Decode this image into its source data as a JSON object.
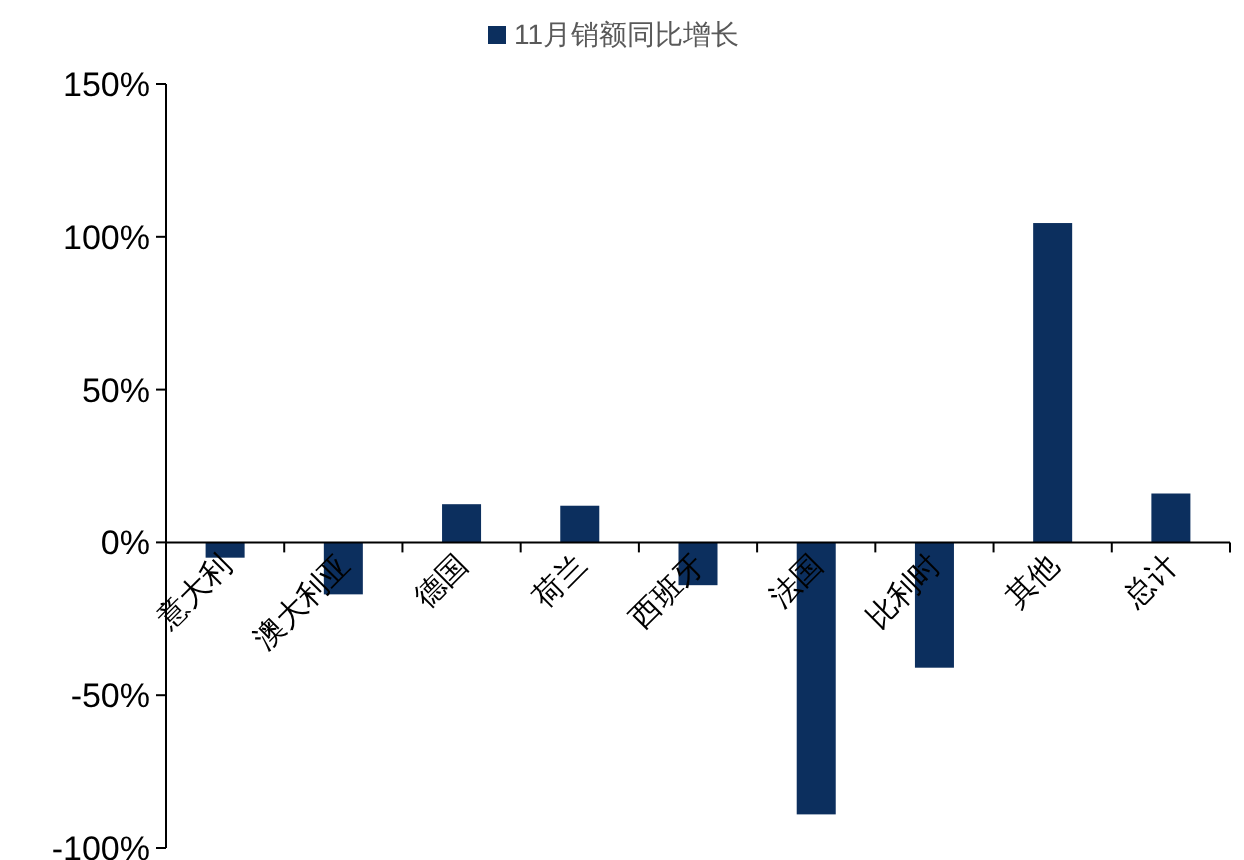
{
  "chart_data": {
    "type": "bar",
    "categories": [
      "意大利",
      "澳大利亚",
      "德国",
      "荷兰",
      "西班牙",
      "法国",
      "比利时",
      "其他",
      "总计"
    ],
    "series": [
      {
        "name": "11月销额同比增长",
        "color": "#0c2f5e",
        "values": [
          -5,
          -17,
          12.5,
          12,
          -14,
          -89,
          -41,
          104.5,
          16
        ]
      }
    ],
    "ylim": [
      -100,
      150
    ],
    "yticks": [
      {
        "value": -100,
        "label": "-100%"
      },
      {
        "value": -50,
        "label": "-50%"
      },
      {
        "value": 0,
        "label": "0%"
      },
      {
        "value": 50,
        "label": "50%"
      },
      {
        "value": 100,
        "label": "100%"
      },
      {
        "value": 150,
        "label": "150%"
      }
    ],
    "grid": false,
    "legend": "top"
  }
}
